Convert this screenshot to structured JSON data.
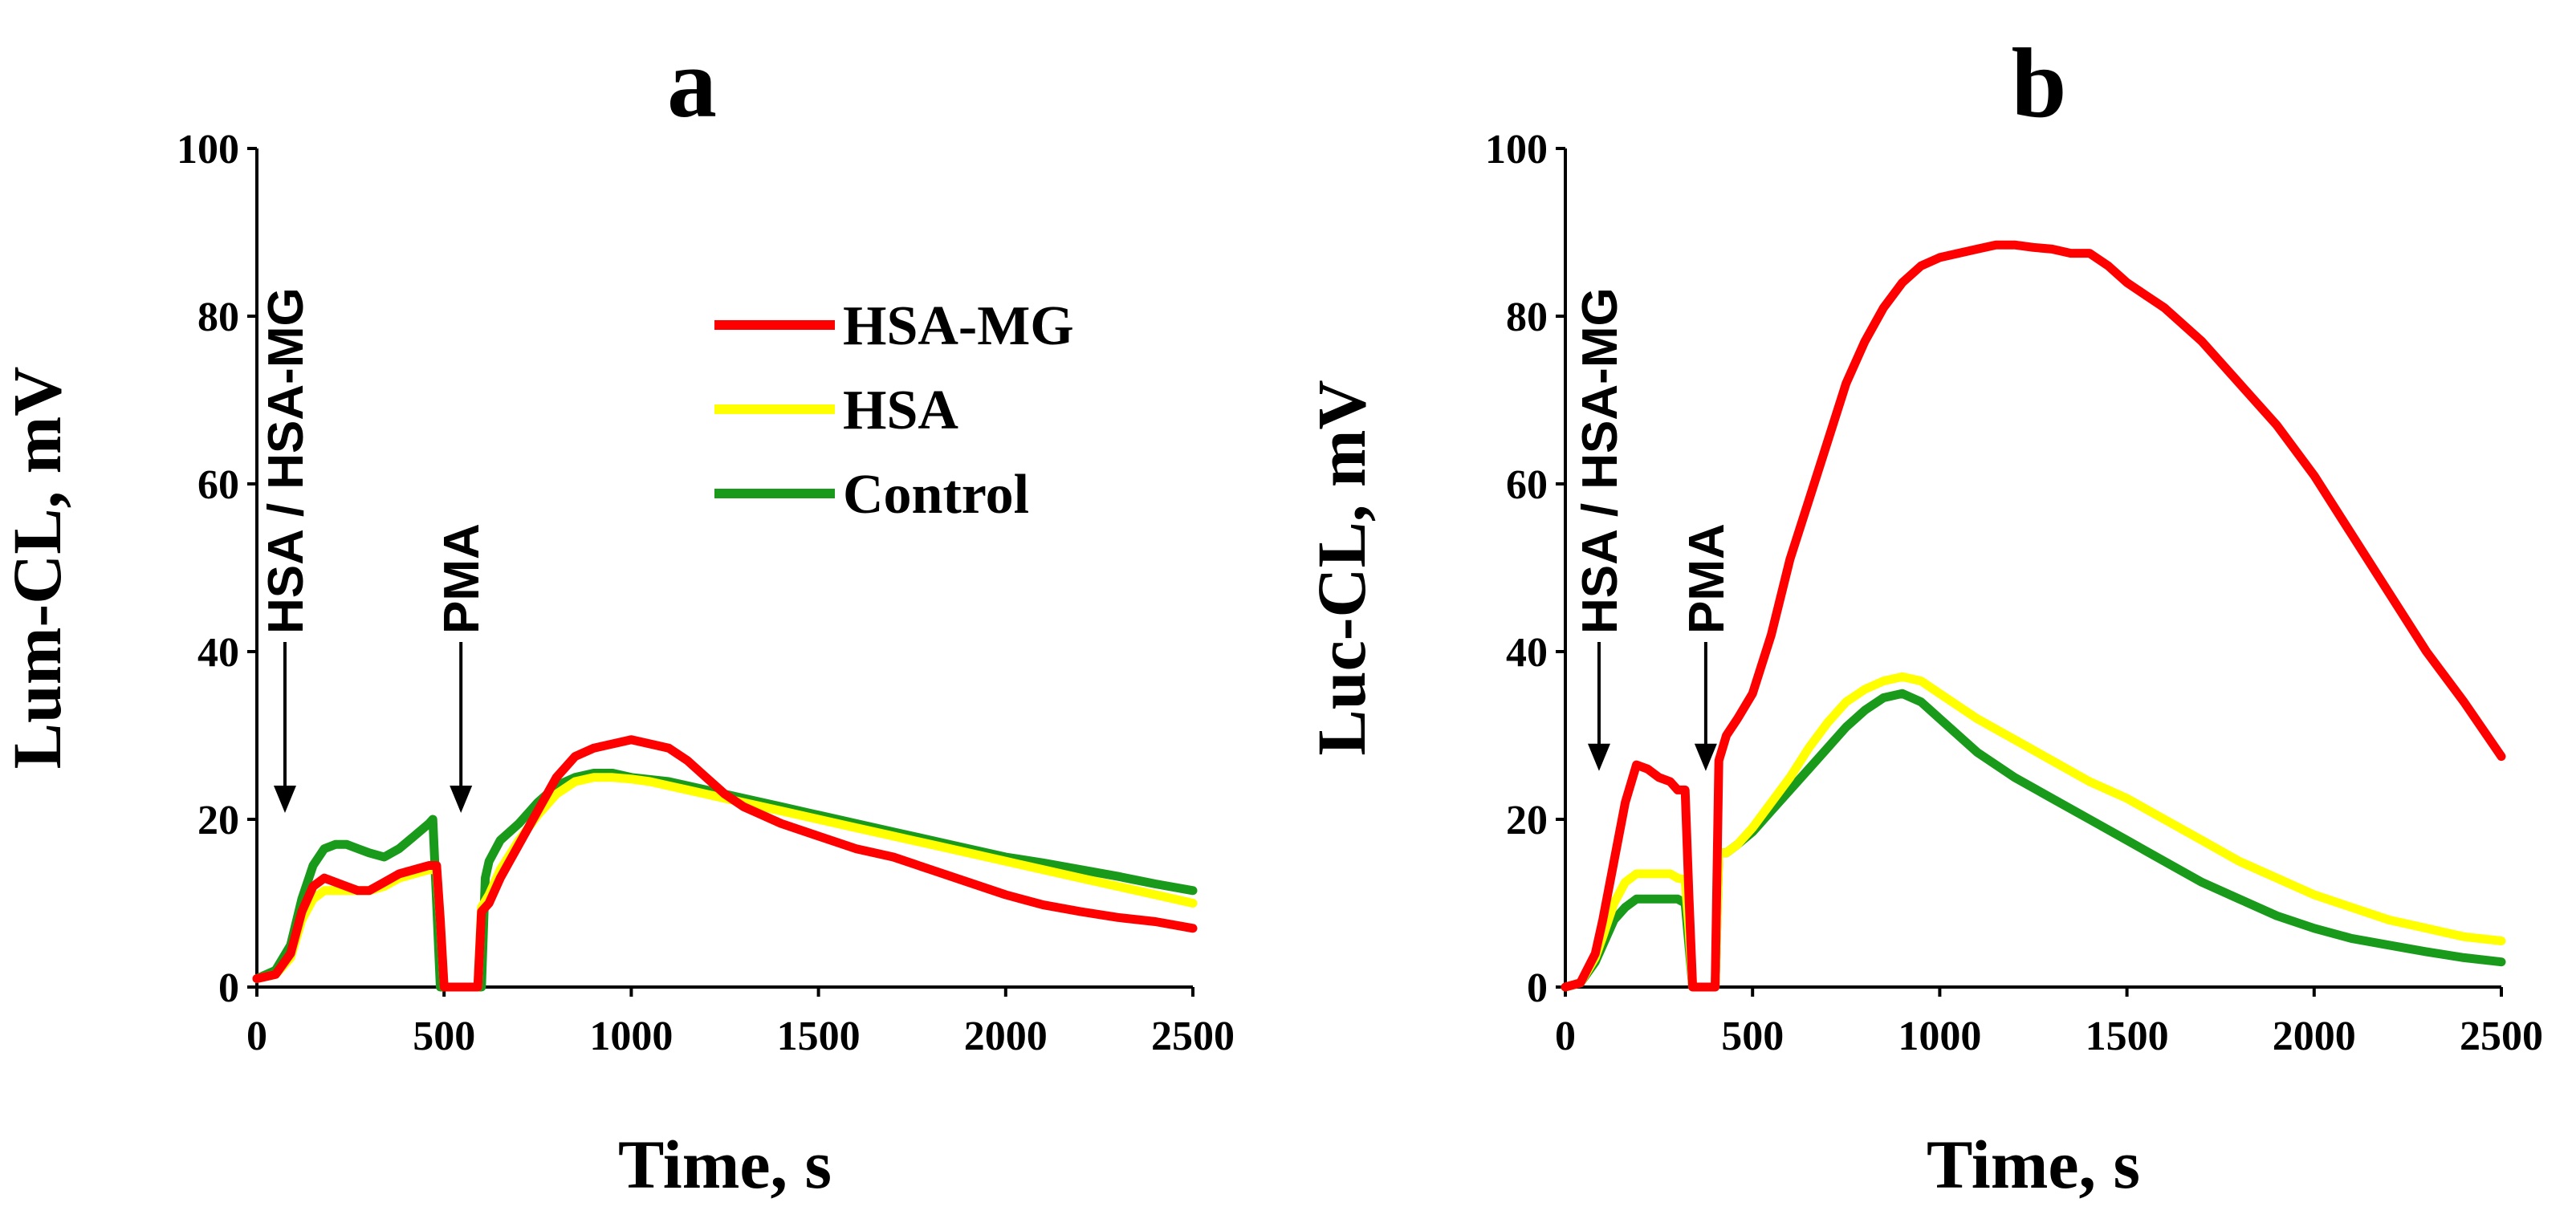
{
  "colors": {
    "HSA-MG": "#ff0000",
    "HSA": "#ffff00",
    "Control": "#1a9a1a"
  },
  "chart_data": [
    {
      "type": "line",
      "panel": "a",
      "ylabel": "Lum-CL, mV",
      "xlabel": "Time, s",
      "xlim": [
        0,
        2500
      ],
      "ylim": [
        0,
        100
      ],
      "xticks": [
        0,
        500,
        1000,
        1500,
        2000,
        2500
      ],
      "yticks": [
        0,
        20,
        40,
        60,
        80,
        100
      ],
      "grid": false,
      "legend": {
        "placement": "top-center",
        "entries": [
          "HSA-MG",
          "HSA",
          "Control"
        ]
      },
      "annotations": [
        {
          "text": "HSA / HSA-MG",
          "x": 75,
          "y": 20
        },
        {
          "text": "PMA",
          "x": 545,
          "y": 20
        }
      ],
      "series": [
        {
          "name": "HSA-MG",
          "x": [
            0,
            50,
            90,
            120,
            150,
            180,
            210,
            240,
            270,
            300,
            340,
            380,
            420,
            460,
            480,
            490,
            500,
            590,
            600,
            620,
            650,
            700,
            750,
            800,
            850,
            900,
            950,
            1000,
            1050,
            1100,
            1150,
            1200,
            1250,
            1300,
            1400,
            1500,
            1600,
            1700,
            1800,
            1900,
            2000,
            2100,
            2200,
            2300,
            2400,
            2500
          ],
          "y": [
            1,
            1.5,
            4,
            9,
            12,
            13,
            12.5,
            12,
            11.5,
            11.5,
            12.5,
            13.5,
            14,
            14.5,
            14.5,
            8,
            0,
            0,
            9,
            10,
            13,
            17,
            21,
            25,
            27.5,
            28.5,
            29,
            29.5,
            29,
            28.5,
            27,
            25,
            23,
            21.5,
            19.5,
            18,
            16.5,
            15.5,
            14,
            12.5,
            11,
            9.8,
            9,
            8.3,
            7.8,
            7
          ]
        },
        {
          "name": "HSA",
          "x": [
            0,
            50,
            90,
            120,
            150,
            180,
            210,
            240,
            270,
            300,
            340,
            380,
            420,
            460,
            480,
            490,
            500,
            590,
            600,
            620,
            650,
            700,
            750,
            800,
            850,
            900,
            950,
            1000,
            1050,
            1100,
            1150,
            1200,
            1250,
            1300,
            1400,
            1500,
            1600,
            1700,
            1800,
            1900,
            2000,
            2100,
            2200,
            2300,
            2400,
            2500
          ],
          "y": [
            1,
            1.5,
            3.5,
            8,
            10.5,
            11.5,
            11.5,
            11.5,
            11.5,
            11.5,
            12,
            13,
            13.5,
            14,
            14,
            8,
            0,
            0,
            9.5,
            11,
            14,
            17.5,
            20.5,
            23,
            24.5,
            25,
            25,
            24.8,
            24.5,
            24,
            23.5,
            23,
            22.5,
            22,
            21,
            20,
            19,
            18,
            17,
            16,
            15,
            14,
            13,
            12,
            11,
            10
          ]
        },
        {
          "name": "Control",
          "x": [
            0,
            50,
            90,
            120,
            150,
            180,
            210,
            240,
            270,
            300,
            340,
            380,
            420,
            460,
            470,
            480,
            490,
            600,
            610,
            620,
            650,
            700,
            750,
            800,
            850,
            900,
            950,
            1000,
            1100,
            1200,
            1300,
            1400,
            1500,
            1600,
            1700,
            1800,
            1900,
            2000,
            2100,
            2200,
            2300,
            2400,
            2500
          ],
          "y": [
            1,
            2,
            5,
            10.5,
            14.5,
            16.5,
            17,
            17,
            16.5,
            16,
            15.5,
            16.5,
            18,
            19.5,
            20,
            10,
            0,
            0,
            13,
            15,
            17.5,
            19.5,
            22,
            24,
            25,
            25.5,
            25.5,
            25,
            24.5,
            23.5,
            22.5,
            21.5,
            20.5,
            19.5,
            18.5,
            17.5,
            16.5,
            15.5,
            14.8,
            14,
            13.2,
            12.3,
            11.5
          ]
        }
      ]
    },
    {
      "type": "line",
      "panel": "b",
      "ylabel": "Luc-CL, mV",
      "xlabel": "Time, s",
      "xlim": [
        0,
        2500
      ],
      "ylim": [
        0,
        100
      ],
      "xticks": [
        0,
        500,
        1000,
        1500,
        2000,
        2500
      ],
      "yticks": [
        0,
        20,
        40,
        60,
        80,
        100
      ],
      "grid": false,
      "annotations": [
        {
          "text": "HSA / HSA-MG",
          "x": 90,
          "y": 25
        },
        {
          "text": "PMA",
          "x": 375,
          "y": 25
        }
      ],
      "series": [
        {
          "name": "HSA-MG",
          "x": [
            0,
            40,
            80,
            100,
            130,
            160,
            190,
            220,
            250,
            280,
            300,
            320,
            330,
            340,
            400,
            410,
            430,
            460,
            500,
            550,
            600,
            650,
            700,
            750,
            800,
            850,
            900,
            950,
            1000,
            1050,
            1100,
            1150,
            1200,
            1250,
            1300,
            1350,
            1400,
            1450,
            1500,
            1550,
            1600,
            1700,
            1800,
            1900,
            2000,
            2100,
            2200,
            2300,
            2400,
            2500
          ],
          "y": [
            0,
            0.5,
            4,
            8,
            15,
            22,
            26.5,
            26,
            25,
            24.5,
            23.5,
            23.5,
            11,
            0,
            0,
            27,
            30,
            32,
            35,
            42,
            51,
            58,
            65,
            72,
            77,
            81,
            84,
            86,
            87,
            87.5,
            88,
            88.5,
            88.5,
            88.2,
            88,
            87.5,
            87.5,
            86,
            84,
            82.5,
            81,
            77,
            72,
            67,
            61,
            54,
            47,
            40,
            34,
            27.5
          ]
        },
        {
          "name": "HSA",
          "x": [
            0,
            40,
            80,
            100,
            130,
            160,
            190,
            220,
            250,
            280,
            300,
            320,
            330,
            340,
            400,
            410,
            430,
            460,
            500,
            550,
            600,
            650,
            700,
            750,
            800,
            850,
            900,
            950,
            1000,
            1100,
            1200,
            1300,
            1400,
            1500,
            1600,
            1700,
            1800,
            1900,
            2000,
            2100,
            2200,
            2300,
            2400,
            2500
          ],
          "y": [
            0,
            0.5,
            3.5,
            6,
            10,
            12.5,
            13.5,
            13.5,
            13.5,
            13.5,
            13,
            12.8,
            7,
            0,
            0,
            16,
            16,
            17,
            19,
            22,
            25,
            28.5,
            31.5,
            34,
            35.5,
            36.5,
            37,
            36.5,
            35,
            32,
            29.5,
            27,
            24.5,
            22.5,
            20,
            17.5,
            15,
            13,
            11,
            9.5,
            8,
            7,
            6,
            5.5
          ]
        },
        {
          "name": "Control",
          "x": [
            0,
            40,
            80,
            100,
            130,
            160,
            190,
            220,
            250,
            280,
            300,
            320,
            330,
            340,
            400,
            410,
            430,
            460,
            500,
            550,
            600,
            650,
            700,
            750,
            800,
            850,
            900,
            950,
            1000,
            1100,
            1200,
            1300,
            1400,
            1500,
            1600,
            1700,
            1800,
            1900,
            2000,
            2100,
            2200,
            2300,
            2400,
            2500
          ],
          "y": [
            0,
            0.5,
            3,
            5,
            8,
            9.5,
            10.5,
            10.5,
            10.5,
            10.5,
            10.5,
            10,
            5,
            0,
            0,
            16,
            16,
            17,
            18.5,
            21,
            23.5,
            26,
            28.5,
            31,
            33,
            34.5,
            35,
            34,
            32,
            28,
            25,
            22.5,
            20,
            17.5,
            15,
            12.5,
            10.5,
            8.5,
            7,
            5.8,
            5,
            4.2,
            3.5,
            3
          ]
        }
      ]
    }
  ]
}
